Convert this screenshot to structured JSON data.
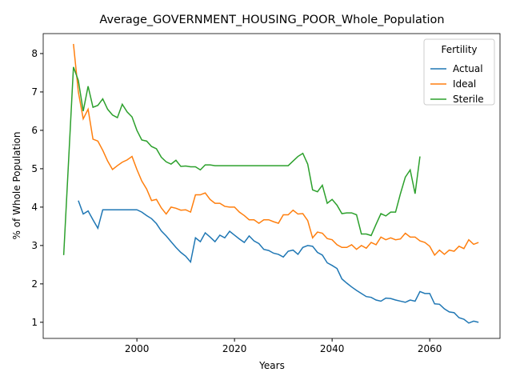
{
  "chart_data": {
    "type": "line",
    "title": "Average_GOVERNMENT_HOUSING_POOR_Whole_Population",
    "x_label": "Years",
    "y_label": "% of Whole Population",
    "legend_title": "Fertility",
    "legend_position": "upper right",
    "xlim": [
      1980.8,
      2074.4
    ],
    "xticks": [
      2000,
      2020,
      2040,
      2060
    ],
    "ylim": [
      0.58,
      8.52
    ],
    "yticks": [
      1,
      2,
      3,
      4,
      5,
      6,
      7,
      8
    ],
    "series": [
      {
        "name": "Actual",
        "color": "#1f77b4",
        "x": [
          1988,
          1989,
          1990,
          1991,
          1992,
          1993,
          1994,
          1995,
          1996,
          1997,
          1998,
          1999,
          2000,
          2001,
          2002,
          2003,
          2004,
          2005,
          2006,
          2007,
          2008,
          2009,
          2010,
          2011,
          2012,
          2013,
          2014,
          2015,
          2016,
          2017,
          2018,
          2019,
          2020,
          2021,
          2022,
          2023,
          2024,
          2025,
          2026,
          2027,
          2028,
          2029,
          2030,
          2031,
          2032,
          2033,
          2034,
          2035,
          2036,
          2037,
          2038,
          2039,
          2040,
          2041,
          2042,
          2043,
          2044,
          2045,
          2046,
          2047,
          2048,
          2049,
          2050,
          2051,
          2052,
          2053,
          2054,
          2055,
          2056,
          2057,
          2058,
          2059,
          2060,
          2061,
          2062,
          2063,
          2064,
          2065,
          2066,
          2067,
          2068,
          2069,
          2070
        ],
        "values": [
          4.17,
          3.82,
          3.9,
          3.67,
          3.45,
          3.93,
          3.93,
          3.93,
          3.93,
          3.93,
          3.93,
          3.93,
          3.93,
          3.87,
          3.78,
          3.7,
          3.57,
          3.38,
          3.25,
          3.1,
          2.95,
          2.82,
          2.72,
          2.57,
          3.2,
          3.1,
          3.33,
          3.22,
          3.1,
          3.27,
          3.2,
          3.37,
          3.27,
          3.17,
          3.08,
          3.25,
          3.12,
          3.05,
          2.9,
          2.87,
          2.8,
          2.77,
          2.7,
          2.85,
          2.88,
          2.77,
          2.95,
          3.0,
          2.98,
          2.82,
          2.75,
          2.55,
          2.48,
          2.4,
          2.13,
          2.02,
          1.92,
          1.83,
          1.75,
          1.67,
          1.65,
          1.58,
          1.55,
          1.63,
          1.62,
          1.58,
          1.55,
          1.52,
          1.58,
          1.55,
          1.8,
          1.75,
          1.75,
          1.48,
          1.47,
          1.35,
          1.27,
          1.25,
          1.12,
          1.08,
          0.98,
          1.03,
          1.0
        ]
      },
      {
        "name": "Ideal",
        "color": "#ff7f0e",
        "x": [
          1987,
          1988,
          1989,
          1990,
          1991,
          1992,
          1993,
          1994,
          1995,
          1996,
          1997,
          1998,
          1999,
          2000,
          2001,
          2002,
          2003,
          2004,
          2005,
          2006,
          2007,
          2008,
          2009,
          2010,
          2011,
          2012,
          2013,
          2014,
          2015,
          2016,
          2017,
          2018,
          2019,
          2020,
          2021,
          2022,
          2023,
          2024,
          2025,
          2026,
          2027,
          2028,
          2029,
          2030,
          2031,
          2032,
          2033,
          2034,
          2035,
          2036,
          2037,
          2038,
          2039,
          2040,
          2041,
          2042,
          2043,
          2044,
          2045,
          2046,
          2047,
          2048,
          2049,
          2050,
          2051,
          2052,
          2053,
          2054,
          2055,
          2056,
          2057,
          2058,
          2059,
          2060,
          2061,
          2062,
          2063,
          2064,
          2065,
          2066,
          2067,
          2068,
          2069,
          2070
        ],
        "values": [
          8.25,
          7.0,
          6.3,
          6.55,
          5.77,
          5.72,
          5.48,
          5.2,
          4.98,
          5.08,
          5.17,
          5.23,
          5.32,
          4.98,
          4.68,
          4.47,
          4.17,
          4.2,
          3.98,
          3.82,
          4.0,
          3.97,
          3.92,
          3.93,
          3.87,
          4.32,
          4.32,
          4.37,
          4.2,
          4.1,
          4.1,
          4.02,
          4.0,
          4.0,
          3.87,
          3.78,
          3.67,
          3.67,
          3.58,
          3.67,
          3.67,
          3.62,
          3.58,
          3.8,
          3.8,
          3.92,
          3.82,
          3.83,
          3.65,
          3.2,
          3.35,
          3.32,
          3.18,
          3.15,
          3.02,
          2.95,
          2.95,
          3.02,
          2.9,
          3.0,
          2.93,
          3.08,
          3.02,
          3.22,
          3.15,
          3.2,
          3.15,
          3.17,
          3.32,
          3.22,
          3.22,
          3.12,
          3.08,
          2.98,
          2.75,
          2.88,
          2.77,
          2.88,
          2.85,
          2.98,
          2.92,
          3.15,
          3.03,
          3.08
        ]
      },
      {
        "name": "Sterile",
        "color": "#2ca02c",
        "x": [
          1985,
          1986,
          1987,
          1988,
          1989,
          1990,
          1991,
          1992,
          1993,
          1994,
          1995,
          1996,
          1997,
          1998,
          1999,
          2000,
          2001,
          2002,
          2003,
          2004,
          2005,
          2006,
          2007,
          2008,
          2009,
          2010,
          2011,
          2012,
          2013,
          2014,
          2015,
          2016,
          2017,
          2018,
          2019,
          2020,
          2021,
          2022,
          2023,
          2024,
          2025,
          2026,
          2027,
          2028,
          2029,
          2030,
          2031,
          2032,
          2033,
          2034,
          2035,
          2036,
          2037,
          2038,
          2039,
          2040,
          2041,
          2042,
          2043,
          2044,
          2045,
          2046,
          2047,
          2048,
          2049,
          2050,
          2051,
          2052,
          2053,
          2054,
          2055,
          2056,
          2057,
          2058
        ],
        "values": [
          2.75,
          5.2,
          7.65,
          7.3,
          6.5,
          7.15,
          6.6,
          6.65,
          6.82,
          6.55,
          6.4,
          6.33,
          6.68,
          6.48,
          6.35,
          6.0,
          5.75,
          5.72,
          5.58,
          5.52,
          5.3,
          5.18,
          5.12,
          5.22,
          5.06,
          5.07,
          5.05,
          5.05,
          4.97,
          5.1,
          5.1,
          5.08,
          5.08,
          5.08,
          5.08,
          5.08,
          5.08,
          5.08,
          5.08,
          5.08,
          5.08,
          5.08,
          5.08,
          5.08,
          5.08,
          5.08,
          5.08,
          5.2,
          5.32,
          5.4,
          5.12,
          4.45,
          4.4,
          4.57,
          4.1,
          4.2,
          4.05,
          3.83,
          3.85,
          3.85,
          3.8,
          3.3,
          3.3,
          3.26,
          3.55,
          3.83,
          3.77,
          3.87,
          3.87,
          4.35,
          4.78,
          4.97,
          4.35,
          5.32
        ]
      }
    ]
  }
}
